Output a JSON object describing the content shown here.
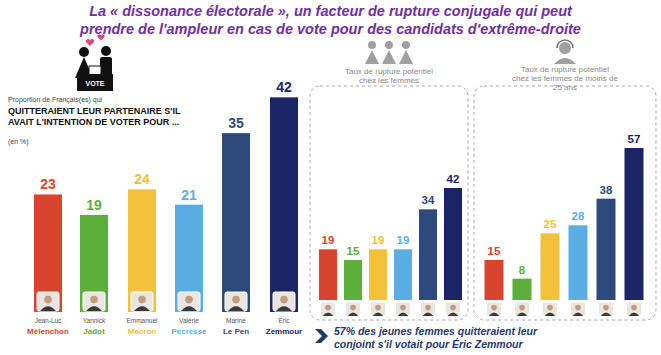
{
  "title": [
    "La « dissonance électorale », un facteur de rupture conjugale qui peut",
    "prendre de l'ampleur en cas de vote pour des candidats d'extrême-droite"
  ],
  "annotation": [
    "57% des jeunes femmes quitteraient leur",
    "conjoint s'il votait pour Éric Zemmour"
  ],
  "chart_data": [
    {
      "type": "bar",
      "subtitle": "Proportion de Français(es) qui",
      "title": [
        "QUITTERAIENT LEUR PARTENAIRE S'IL",
        "AVAIT L'INTENTION DE VOTER POUR ..."
      ],
      "note": "(en %)",
      "icon_label": "VOTE",
      "categories": [
        "Jean-Luc Mélenchon",
        "Yannick Jadot",
        "Emmanuel Macron",
        "Valérie Pécresse",
        "Marine Le Pen",
        "Éric Zemmour"
      ],
      "values": [
        23,
        19,
        24,
        21,
        35,
        42
      ],
      "colors": [
        "#d9442e",
        "#5daf3b",
        "#f3c03a",
        "#5aaee3",
        "#2e4a7d",
        "#1b2566"
      ],
      "ylim": [
        0,
        45
      ],
      "data_labels": true,
      "tick_labels": "x"
    },
    {
      "type": "bar",
      "title": [
        "Taux de rupture potentiel",
        "chez les femmes"
      ],
      "values": [
        19,
        15,
        19,
        19,
        34,
        42
      ],
      "colors": [
        "#d9442e",
        "#5daf3b",
        "#f3c03a",
        "#5aaee3",
        "#2e4a7d",
        "#1b2566"
      ],
      "ylim": [
        0,
        60
      ],
      "data_labels": true,
      "tick_labels": false
    },
    {
      "type": "bar",
      "title": [
        "Taux de rupture potentiel",
        "chez les femmes de moins de",
        "25 ans"
      ],
      "values": [
        15,
        8,
        25,
        28,
        38,
        57
      ],
      "colors": [
        "#d9442e",
        "#5daf3b",
        "#f3c03a",
        "#5aaee3",
        "#2e4a7d",
        "#1b2566"
      ],
      "ylim": [
        0,
        60
      ],
      "data_labels": true,
      "tick_labels": false
    }
  ]
}
